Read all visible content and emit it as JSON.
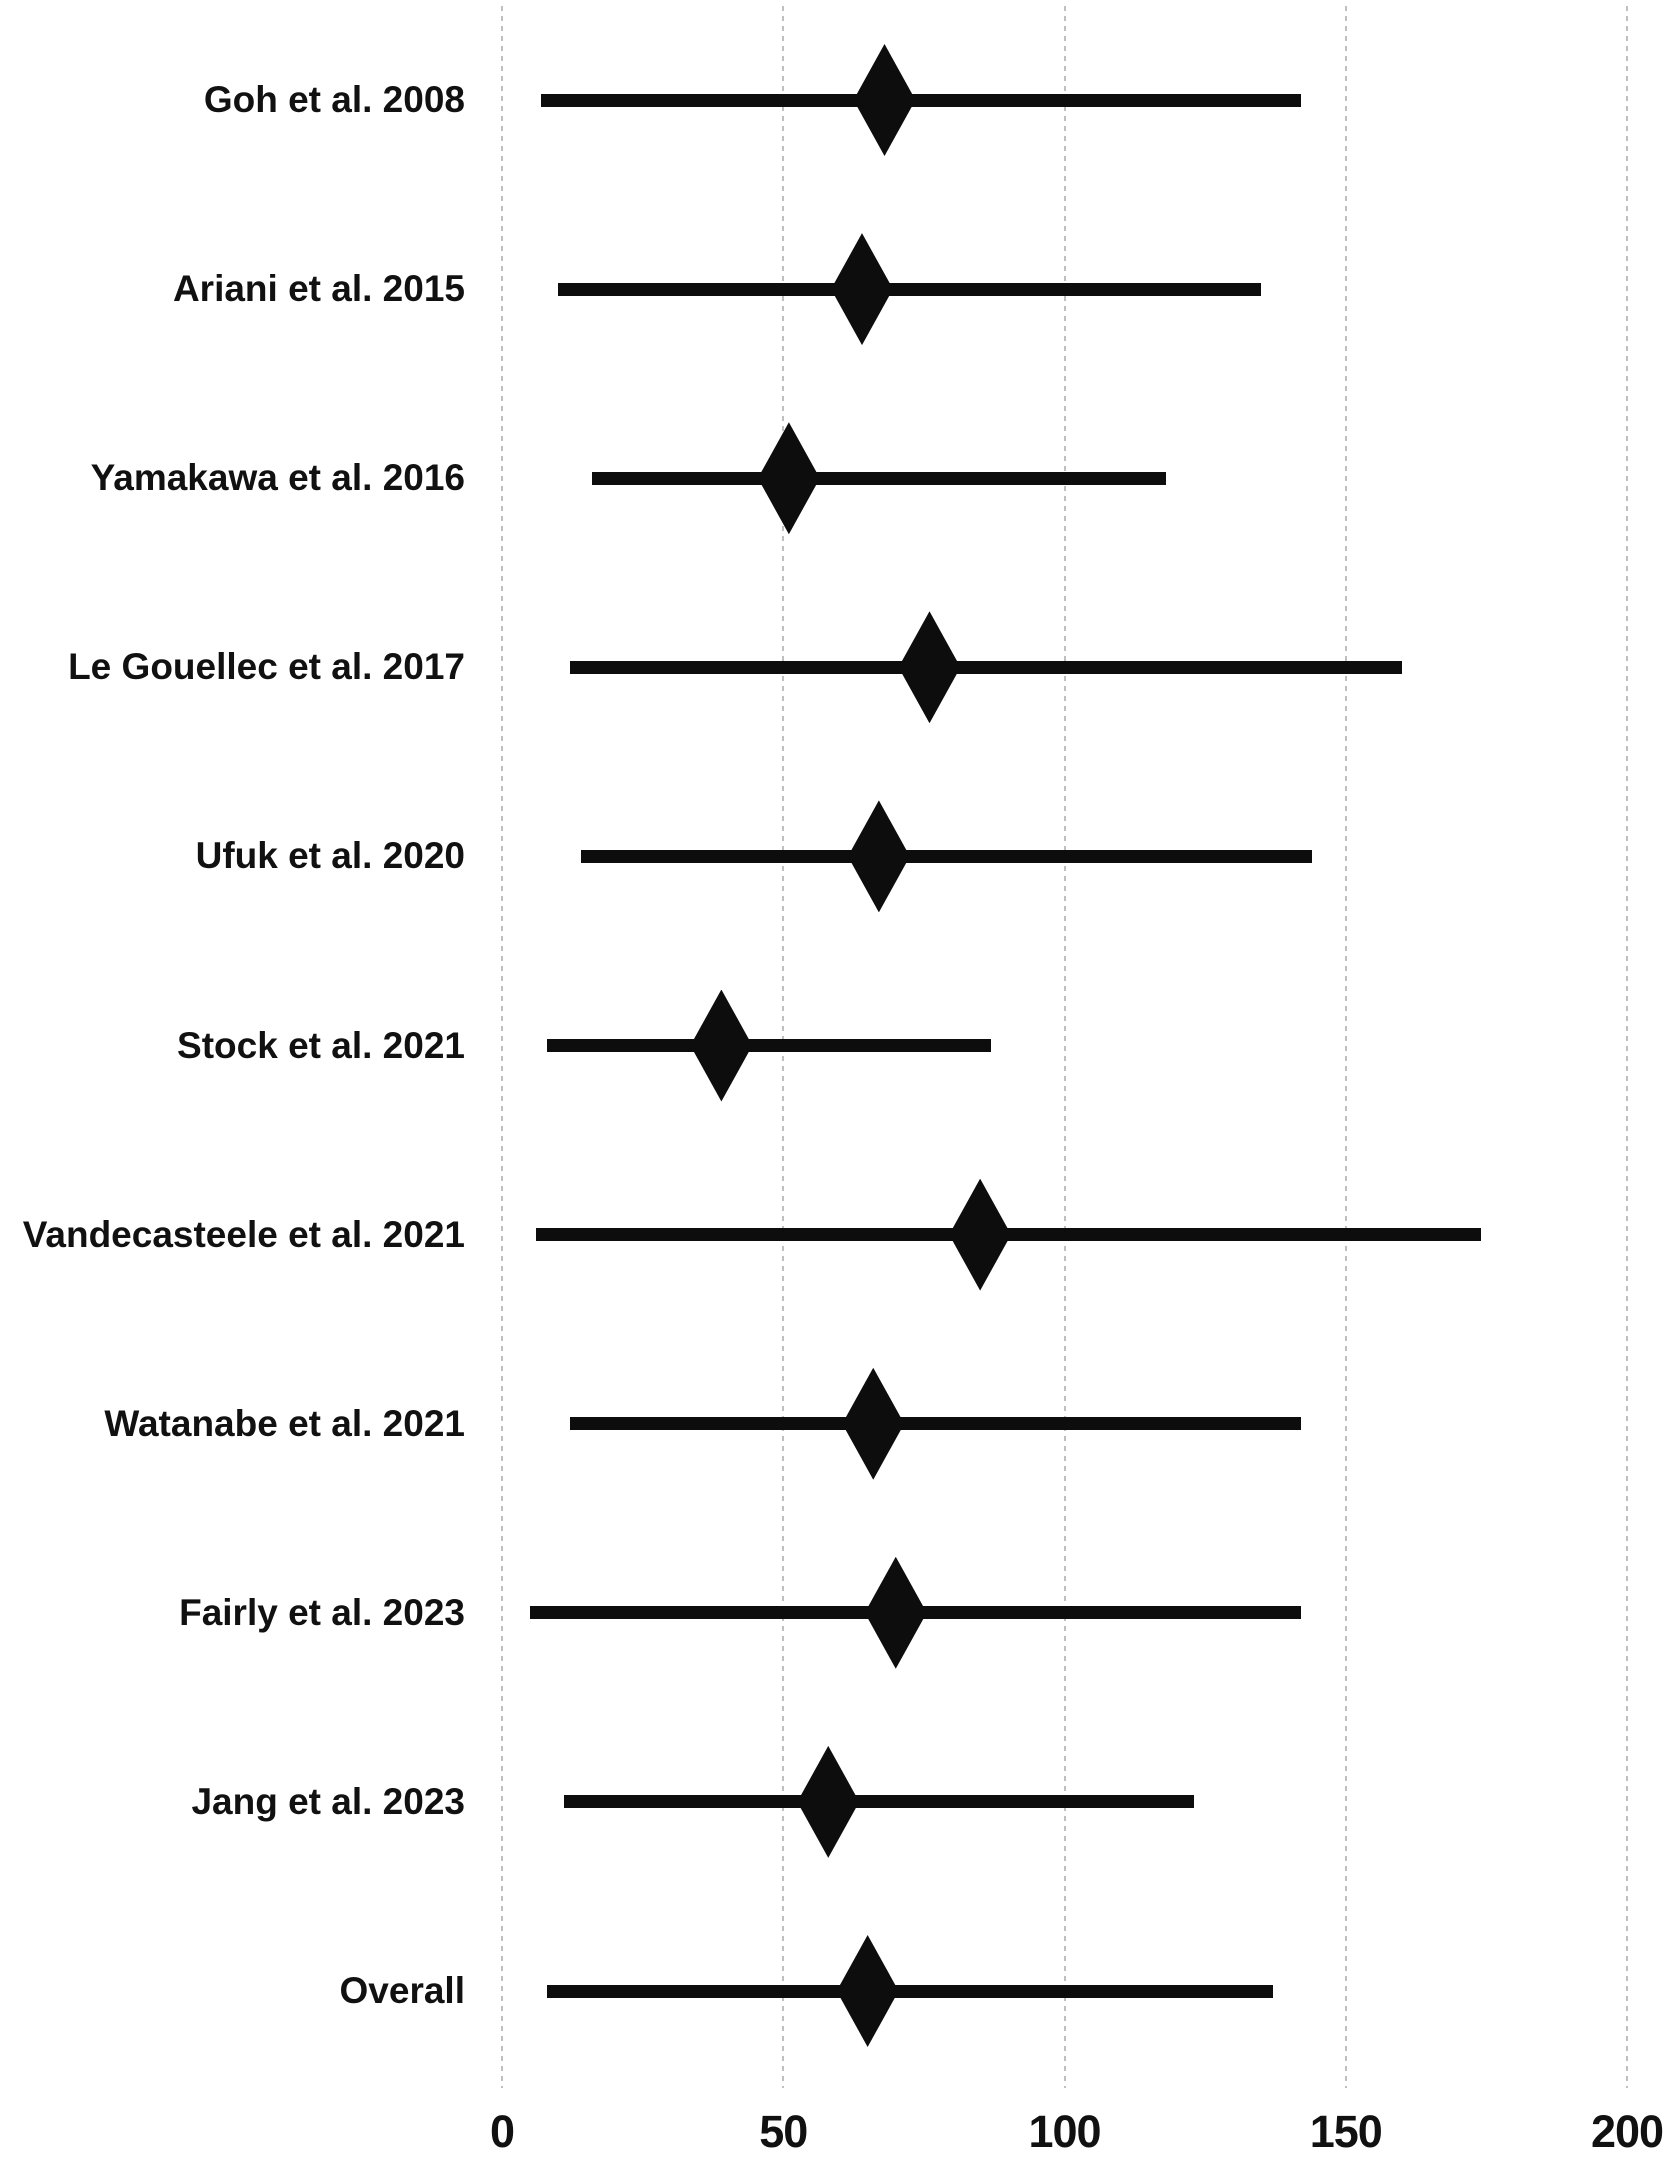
{
  "chart_data": {
    "type": "forest",
    "title": "",
    "xlabel": "",
    "ylabel": "",
    "xlim": [
      0,
      200
    ],
    "grid": true,
    "x_ticks": [
      {
        "value": 0,
        "label": "0"
      },
      {
        "value": 50,
        "label": "50"
      },
      {
        "value": 100,
        "label": "100"
      },
      {
        "value": 150,
        "label": "150"
      },
      {
        "value": 200,
        "label": "200"
      }
    ],
    "studies": [
      {
        "label": "Goh et al. 2008",
        "estimate": 68,
        "ci_low": 7,
        "ci_high": 142
      },
      {
        "label": "Ariani et al. 2015",
        "estimate": 64,
        "ci_low": 10,
        "ci_high": 135
      },
      {
        "label": "Yamakawa et al. 2016",
        "estimate": 51,
        "ci_low": 16,
        "ci_high": 118
      },
      {
        "label": "Le Gouellec et al. 2017",
        "estimate": 76,
        "ci_low": 12,
        "ci_high": 160
      },
      {
        "label": "Ufuk et al. 2020",
        "estimate": 67,
        "ci_low": 14,
        "ci_high": 144
      },
      {
        "label": "Stock et al. 2021",
        "estimate": 39,
        "ci_low": 8,
        "ci_high": 87
      },
      {
        "label": "Vandecasteele et al. 2021",
        "estimate": 85,
        "ci_low": 6,
        "ci_high": 174
      },
      {
        "label": "Watanabe et al. 2021",
        "estimate": 66,
        "ci_low": 12,
        "ci_high": 142
      },
      {
        "label": "Fairly et al. 2023",
        "estimate": 70,
        "ci_low": 5,
        "ci_high": 142
      },
      {
        "label": "Jang et al. 2023",
        "estimate": 58,
        "ci_low": 11,
        "ci_high": 123
      },
      {
        "label": "Overall",
        "estimate": 65,
        "ci_low": 8,
        "ci_high": 137
      }
    ]
  },
  "colors": {
    "marker": "#0d0d0d",
    "ci_line": "#0d0d0d",
    "gridline": "#bfbfbf",
    "text": "#111111",
    "background": "#ffffff"
  }
}
